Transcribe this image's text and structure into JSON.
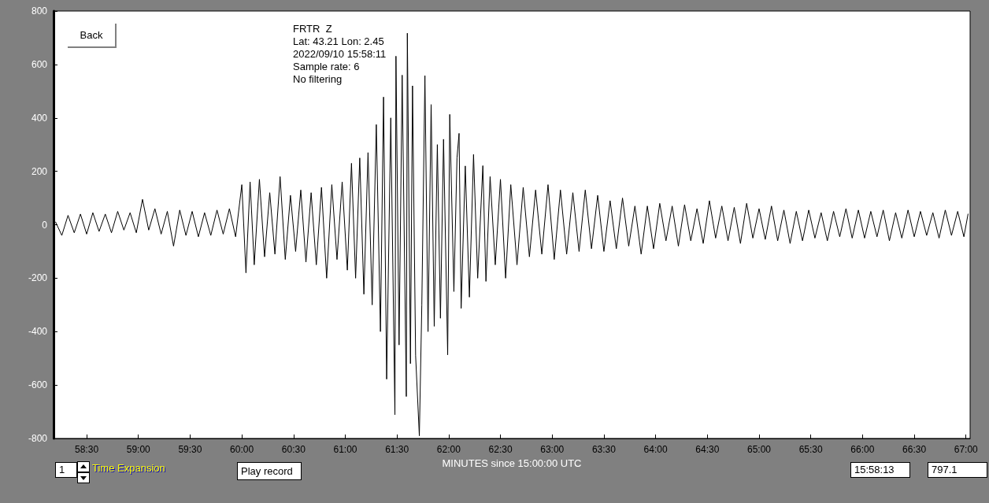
{
  "chart_data": {
    "type": "line",
    "xlabel": "MINUTES since 15:00:00 UTC",
    "marker": "none",
    "line_style": "solid",
    "grid": false,
    "annotations": [
      "FRTR  Z",
      "Lat: 43.21 Lon: 2.45",
      "2022/09/10 15:58:11",
      "Sample rate: 6",
      "No filtering",
      "Back",
      "1",
      "Time Expansion",
      "Play record",
      "15:58:13",
      "797.1"
    ],
    "xlim": [
      58.18,
      67.04
    ],
    "ylim": [
      -800,
      800
    ],
    "yticks": [
      -800,
      -600,
      -400,
      -200,
      0,
      200,
      400,
      600,
      800
    ],
    "xticks": [
      {
        "value": 58.5,
        "label": "58:30"
      },
      {
        "value": 59,
        "label": "59:00"
      },
      {
        "value": 59.5,
        "label": "59:30"
      },
      {
        "value": 60,
        "label": "60:00"
      },
      {
        "value": 60.5,
        "label": "60:30"
      },
      {
        "value": 61,
        "label": "61:00"
      },
      {
        "value": 61.5,
        "label": "61:30"
      },
      {
        "value": 62,
        "label": "62:00"
      },
      {
        "value": 62.5,
        "label": "62:30"
      },
      {
        "value": 63,
        "label": "63:00"
      },
      {
        "value": 63.5,
        "label": "63:30"
      },
      {
        "value": 64,
        "label": "64:00"
      },
      {
        "value": 64.5,
        "label": "64:30"
      },
      {
        "value": 65,
        "label": "65:00"
      },
      {
        "value": 65.5,
        "label": "65:30"
      },
      {
        "value": 66,
        "label": "66:00"
      },
      {
        "value": 66.5,
        "label": "66:30"
      },
      {
        "value": 67,
        "label": "67:00"
      }
    ],
    "series": [
      {
        "color": "#000000",
        "x": [
          58.2,
          58.26,
          58.32,
          58.38,
          58.44,
          58.5,
          58.56,
          58.62,
          58.68,
          58.74,
          58.8,
          58.86,
          58.92,
          58.98,
          59.04,
          59.1,
          59.16,
          59.22,
          59.28,
          59.34,
          59.4,
          59.46,
          59.52,
          59.58,
          59.64,
          59.7,
          59.76,
          59.82,
          59.88,
          59.94,
          60.0,
          60.04,
          60.08,
          60.12,
          60.17,
          60.22,
          60.27,
          60.32,
          60.37,
          60.42,
          60.47,
          60.52,
          60.57,
          60.62,
          60.67,
          60.72,
          60.77,
          60.82,
          60.87,
          60.92,
          60.97,
          61.02,
          61.06,
          61.1,
          61.14,
          61.18,
          61.22,
          61.26,
          61.3,
          61.34,
          61.37,
          61.4,
          61.44,
          61.48,
          61.49,
          61.52,
          61.55,
          61.59,
          61.6,
          61.63,
          61.65,
          61.68,
          61.716,
          61.74,
          61.77,
          61.8,
          61.83,
          61.86,
          61.89,
          61.92,
          61.95,
          61.99,
          62.01,
          62.05,
          62.08,
          62.1,
          62.12,
          62.16,
          62.2,
          62.24,
          62.28,
          62.33,
          62.36,
          62.4,
          62.45,
          62.5,
          62.55,
          62.6,
          62.66,
          62.72,
          62.78,
          62.84,
          62.9,
          62.96,
          63.02,
          63.08,
          63.14,
          63.2,
          63.26,
          63.32,
          63.38,
          63.44,
          63.5,
          63.56,
          63.62,
          63.68,
          63.74,
          63.8,
          63.86,
          63.92,
          63.98,
          64.04,
          64.1,
          64.16,
          64.22,
          64.28,
          64.34,
          64.4,
          64.46,
          64.52,
          64.58,
          64.64,
          64.7,
          64.76,
          64.82,
          64.88,
          64.94,
          65.0,
          65.06,
          65.12,
          65.18,
          65.24,
          65.3,
          65.36,
          65.42,
          65.48,
          65.54,
          65.6,
          65.66,
          65.72,
          65.78,
          65.84,
          65.9,
          65.96,
          66.02,
          66.08,
          66.14,
          66.2,
          66.26,
          66.32,
          66.38,
          66.44,
          66.5,
          66.56,
          66.62,
          66.68,
          66.74,
          66.8,
          66.86,
          66.92,
          66.98,
          67.02
        ],
        "values": [
          10,
          -40,
          35,
          -30,
          40,
          -35,
          45,
          -25,
          40,
          -30,
          50,
          -20,
          45,
          -30,
          95,
          -20,
          60,
          -35,
          50,
          -80,
          55,
          -40,
          50,
          -45,
          45,
          -40,
          55,
          -35,
          60,
          -45,
          150,
          -180,
          160,
          -150,
          170,
          -120,
          120,
          -110,
          180,
          -130,
          110,
          -100,
          130,
          -140,
          120,
          -150,
          140,
          -200,
          150,
          -130,
          160,
          -170,
          230,
          -200,
          250,
          -260,
          270,
          -300,
          375,
          -400,
          478,
          -578,
          400,
          -711,
          631,
          -450,
          560,
          -643,
          717,
          -520,
          520,
          -490,
          -790,
          -300,
          558,
          -400,
          450,
          -380,
          300,
          -350,
          320,
          -487,
          413,
          -250,
          250,
          342,
          -313,
          220,
          -271,
          263,
          -200,
          221,
          -212,
          180,
          -150,
          170,
          -200,
          150,
          -150,
          140,
          -120,
          130,
          -110,
          150,
          -130,
          130,
          -110,
          120,
          -100,
          130,
          -90,
          110,
          -100,
          90,
          -90,
          100,
          -80,
          70,
          -110,
          70,
          -90,
          80,
          -60,
          70,
          -80,
          75,
          -60,
          60,
          -70,
          90,
          -50,
          70,
          -60,
          65,
          -70,
          80,
          -50,
          60,
          -55,
          70,
          -60,
          55,
          -70,
          50,
          -60,
          55,
          -50,
          45,
          -60,
          50,
          -45,
          60,
          -50,
          55,
          -50,
          50,
          -45,
          55,
          -60,
          45,
          -50,
          55,
          -45,
          50,
          -40,
          45,
          -50,
          55,
          -40,
          50,
          -45,
          40
        ]
      }
    ]
  }
}
